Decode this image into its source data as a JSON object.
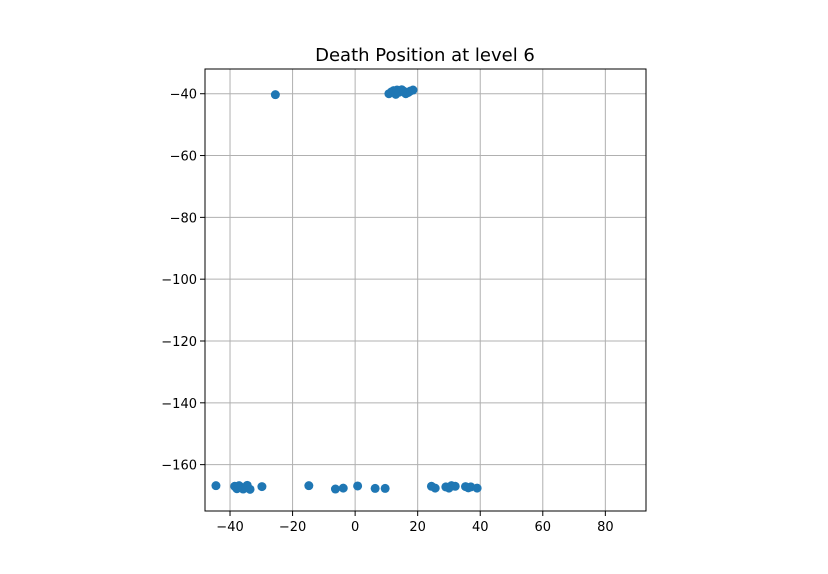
{
  "chart_data": {
    "type": "scatter",
    "title": "Death Position at level 6",
    "xlabel": "",
    "ylabel": "",
    "xlim": [
      -48,
      93
    ],
    "ylim": [
      -175,
      -32
    ],
    "xticks": [
      -40,
      -20,
      0,
      20,
      40,
      60,
      80
    ],
    "yticks": [
      -40,
      -60,
      -80,
      -100,
      -120,
      -140,
      -160
    ],
    "xtick_labels": [
      "−40",
      "−20",
      "0",
      "20",
      "40",
      "60",
      "80"
    ],
    "ytick_labels": [
      "−40",
      "−60",
      "−80",
      "−100",
      "−120",
      "−140",
      "−160"
    ],
    "grid": true,
    "marker_color": "#1f77b4",
    "series": [
      {
        "points": [
          {
            "x": -25.5,
            "y": -40.3
          },
          {
            "x": 10.8,
            "y": -40.0
          },
          {
            "x": 11.6,
            "y": -39.4
          },
          {
            "x": 12.3,
            "y": -39.0
          },
          {
            "x": 13.0,
            "y": -40.2
          },
          {
            "x": 13.4,
            "y": -38.8
          },
          {
            "x": 14.1,
            "y": -39.5
          },
          {
            "x": 14.9,
            "y": -38.7
          },
          {
            "x": 15.6,
            "y": -39.2
          },
          {
            "x": 16.2,
            "y": -40.0
          },
          {
            "x": 17.0,
            "y": -39.6
          },
          {
            "x": 17.7,
            "y": -39.1
          },
          {
            "x": 18.5,
            "y": -38.8
          },
          {
            "x": -44.5,
            "y": -166.8
          },
          {
            "x": -38.5,
            "y": -167.0
          },
          {
            "x": -37.8,
            "y": -167.8
          },
          {
            "x": -37.1,
            "y": -166.8
          },
          {
            "x": -36.4,
            "y": -167.3
          },
          {
            "x": -35.8,
            "y": -167.9
          },
          {
            "x": -35.1,
            "y": -167.4
          },
          {
            "x": -34.5,
            "y": -166.7
          },
          {
            "x": -33.6,
            "y": -168.0
          },
          {
            "x": -29.8,
            "y": -167.1
          },
          {
            "x": -14.8,
            "y": -166.8
          },
          {
            "x": -6.3,
            "y": -167.9
          },
          {
            "x": -3.8,
            "y": -167.6
          },
          {
            "x": 0.8,
            "y": -166.9
          },
          {
            "x": 6.4,
            "y": -167.7
          },
          {
            "x": 9.6,
            "y": -167.7
          },
          {
            "x": 24.4,
            "y": -167.0
          },
          {
            "x": 25.6,
            "y": -167.6
          },
          {
            "x": 29.0,
            "y": -167.2
          },
          {
            "x": 30.0,
            "y": -167.6
          },
          {
            "x": 30.8,
            "y": -166.8
          },
          {
            "x": 32.0,
            "y": -167.0
          },
          {
            "x": 35.3,
            "y": -167.1
          },
          {
            "x": 36.2,
            "y": -167.5
          },
          {
            "x": 37.0,
            "y": -167.2
          },
          {
            "x": 39.0,
            "y": -167.6
          }
        ]
      }
    ]
  }
}
